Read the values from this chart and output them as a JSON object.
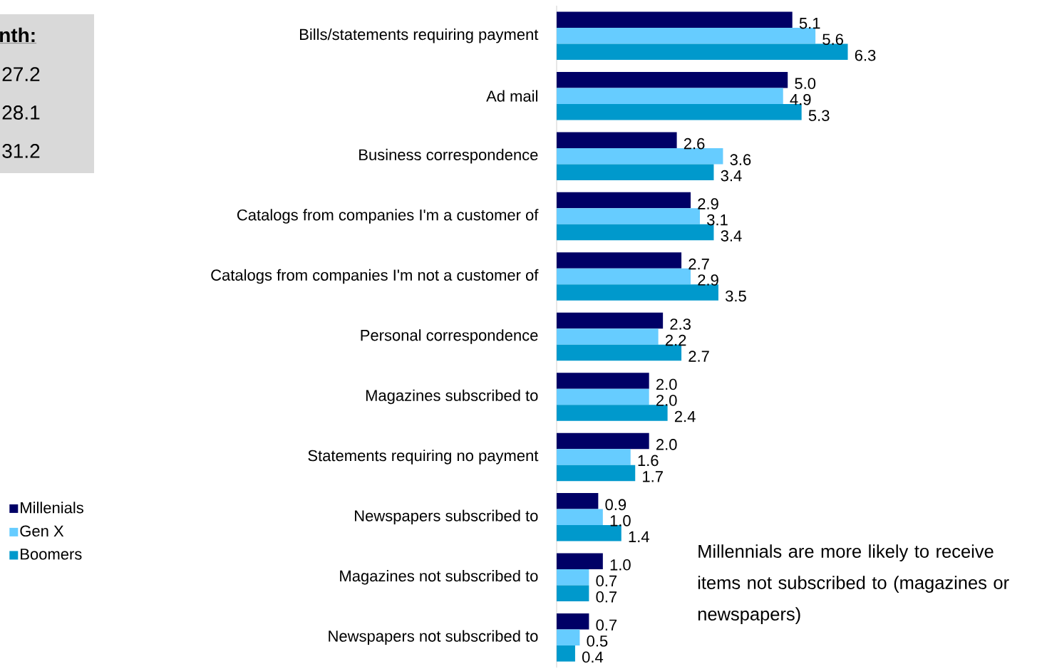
{
  "chart_data": {
    "type": "bar",
    "orientation": "horizontal",
    "legend": "bottom left",
    "categories": [
      "Bills/statements requiring payment",
      "Ad mail",
      "Business correspondence",
      "Catalogs from companies I'm a customer of",
      "Catalogs from companies I'm not a customer of",
      "Personal correspondence",
      "Magazines subscribed to",
      "Statements requiring no payment",
      "Newspapers subscribed to",
      "Magazines not subscribed to",
      "Newspapers not subscribed to"
    ],
    "series": [
      {
        "name": "Millenials",
        "color": "#000066",
        "values": [
          5.1,
          5.0,
          2.6,
          2.9,
          2.7,
          2.3,
          2.0,
          2.0,
          0.9,
          1.0,
          0.7
        ],
        "value_labels": [
          "5.1",
          "5.0",
          "2.6",
          "2.9",
          "2.7",
          "2.3",
          "2.0",
          "2.0",
          "0.9",
          "1.0",
          "0.7"
        ]
      },
      {
        "name": "Gen X",
        "color": "#66ccff",
        "values": [
          5.6,
          4.9,
          3.6,
          3.1,
          2.9,
          2.2,
          2.0,
          1.6,
          1.0,
          0.7,
          0.5
        ],
        "value_labels": [
          "5.6",
          "4.9",
          "3.6",
          "3.1",
          "2.9",
          "2.2",
          "2.0",
          "1.6",
          "1.0",
          "0.7",
          "0.5"
        ]
      },
      {
        "name": "Boomers",
        "color": "#0099cc",
        "values": [
          6.3,
          5.3,
          3.4,
          3.4,
          3.5,
          2.7,
          2.4,
          1.7,
          1.4,
          0.7,
          0.4
        ],
        "value_labels": [
          "6.3",
          "5.3",
          "3.4",
          "3.4",
          "3.5",
          "2.7",
          "2.4",
          "1.7",
          "1.4",
          "0.7",
          "0.4"
        ]
      }
    ],
    "annotations": [
      "nth:",
      "27.2",
      "28.1",
      "31.2",
      "Millennials are more likely to receive items not subscribed to (magazines or newspapers)"
    ]
  }
}
